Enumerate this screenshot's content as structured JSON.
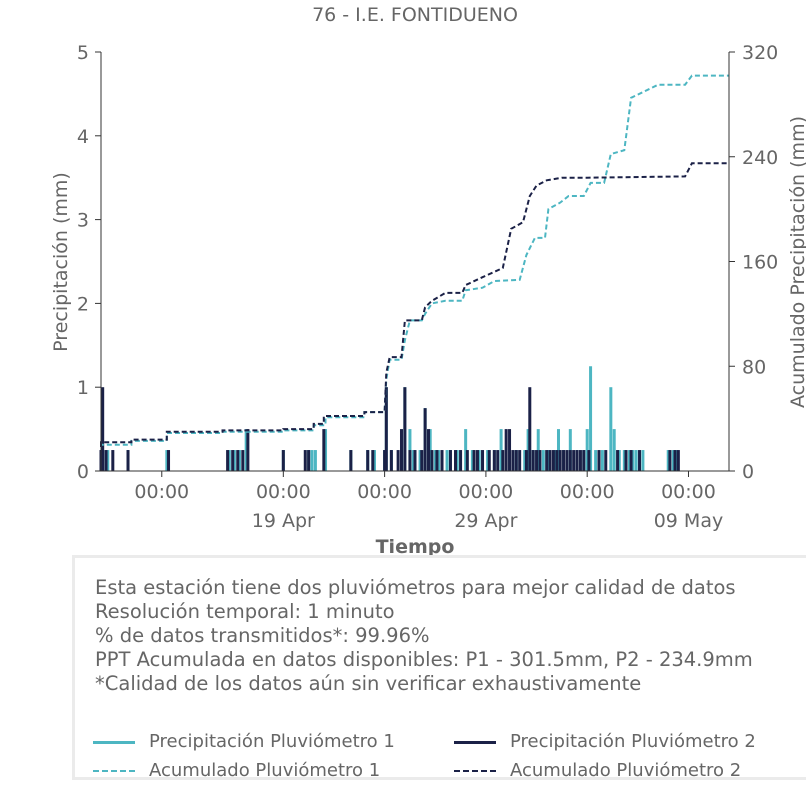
{
  "chart_data": {
    "type": "bar",
    "title": "76 - I.E. FONTIDUENO",
    "xlabel": "Tiempo",
    "ylabel": "Precipitación (mm)",
    "y2label": "Acumulado Precipitación (mm)",
    "ylim": [
      0,
      5
    ],
    "y2lim": [
      0,
      320
    ],
    "yticks": [
      "0",
      "1",
      "2",
      "3",
      "4",
      "5"
    ],
    "y2ticks": [
      "0",
      "80",
      "160",
      "240",
      "320"
    ],
    "xlim": [
      "2024-04-10 00:00",
      "2024-05-11 00:00"
    ],
    "xticks": [
      {
        "x": "2024-04-13 00:00",
        "time": "00:00",
        "date": ""
      },
      {
        "x": "2024-04-19 00:00",
        "time": "00:00",
        "date": "19 Apr"
      },
      {
        "x": "2024-04-24 00:00",
        "time": "00:00",
        "date": ""
      },
      {
        "x": "2024-04-29 00:00",
        "time": "00:00",
        "date": "29 Apr"
      },
      {
        "x": "2024-05-04 00:00",
        "time": "00:00",
        "date": ""
      },
      {
        "x": "2024-05-09 00:00",
        "time": "00:00",
        "date": "09 May"
      }
    ],
    "colors": {
      "p1": "#4db6c2",
      "p2": "#1b2147"
    },
    "series": [
      {
        "name": "Precipitación Pluviómetro 1",
        "type": "bar",
        "axis": "left",
        "color": "#4db6c2",
        "points": [
          [
            "2024-04-10 02:00",
            0.25
          ],
          [
            "2024-04-10 08:00",
            0.25
          ],
          [
            "2024-04-11 08:00",
            0.25
          ],
          [
            "2024-04-13 06:00",
            0.25
          ],
          [
            "2024-04-16 08:00",
            0.25
          ],
          [
            "2024-04-16 14:00",
            0.25
          ],
          [
            "2024-04-16 20:00",
            0.25
          ],
          [
            "2024-04-17 04:00",
            0.5
          ],
          [
            "2024-04-19 00:00",
            0.25
          ],
          [
            "2024-04-20 06:00",
            0.25
          ],
          [
            "2024-04-20 10:00",
            0.25
          ],
          [
            "2024-04-20 14:00",
            0.25
          ],
          [
            "2024-04-21 02:00",
            0.5
          ],
          [
            "2024-04-22 08:00",
            0.25
          ],
          [
            "2024-04-23 04:00",
            0.25
          ],
          [
            "2024-04-23 12:00",
            0.25
          ],
          [
            "2024-04-24 00:00",
            0.25
          ],
          [
            "2024-04-24 02:00",
            1.0
          ],
          [
            "2024-04-24 08:00",
            0.25
          ],
          [
            "2024-04-24 20:00",
            0.25
          ],
          [
            "2024-04-25 00:00",
            1.0
          ],
          [
            "2024-04-25 06:00",
            0.5
          ],
          [
            "2024-04-25 10:00",
            0.25
          ],
          [
            "2024-04-25 18:00",
            0.25
          ],
          [
            "2024-04-26 00:00",
            0.75
          ],
          [
            "2024-04-26 06:00",
            0.5
          ],
          [
            "2024-04-26 12:00",
            0.25
          ],
          [
            "2024-04-26 16:00",
            0.25
          ],
          [
            "2024-04-27 02:00",
            0.25
          ],
          [
            "2024-04-27 06:00",
            0.25
          ],
          [
            "2024-04-27 14:00",
            0.25
          ],
          [
            "2024-04-28 00:00",
            0.5
          ],
          [
            "2024-04-28 08:00",
            0.25
          ],
          [
            "2024-04-28 16:00",
            0.25
          ],
          [
            "2024-04-29 02:00",
            0.25
          ],
          [
            "2024-04-29 10:00",
            0.25
          ],
          [
            "2024-04-29 18:00",
            0.5
          ],
          [
            "2024-04-30 04:00",
            0.25
          ],
          [
            "2024-04-30 12:00",
            0.25
          ],
          [
            "2024-04-30 22:00",
            0.25
          ],
          [
            "2024-05-01 02:00",
            0.5
          ],
          [
            "2024-05-01 08:00",
            0.25
          ],
          [
            "2024-05-01 14:00",
            0.5
          ],
          [
            "2024-05-01 20:00",
            0.25
          ],
          [
            "2024-05-02 02:00",
            0.25
          ],
          [
            "2024-05-02 10:00",
            0.25
          ],
          [
            "2024-05-02 14:00",
            0.5
          ],
          [
            "2024-05-02 20:00",
            0.25
          ],
          [
            "2024-05-03 04:00",
            0.5
          ],
          [
            "2024-05-03 12:00",
            0.25
          ],
          [
            "2024-05-03 20:00",
            0.25
          ],
          [
            "2024-05-04 00:00",
            0.5
          ],
          [
            "2024-05-04 04:00",
            1.25
          ],
          [
            "2024-05-04 10:00",
            0.25
          ],
          [
            "2024-05-04 18:00",
            0.25
          ],
          [
            "2024-05-05 04:00",
            1.0
          ],
          [
            "2024-05-05 08:00",
            0.5
          ],
          [
            "2024-05-05 14:00",
            0.25
          ],
          [
            "2024-05-05 20:00",
            0.25
          ],
          [
            "2024-05-06 02:00",
            0.25
          ],
          [
            "2024-05-06 06:00",
            0.25
          ],
          [
            "2024-05-06 10:00",
            0.25
          ],
          [
            "2024-05-06 18:00",
            0.25
          ],
          [
            "2024-05-08 00:00",
            0.25
          ],
          [
            "2024-05-08 06:00",
            0.25
          ],
          [
            "2024-05-08 10:00",
            0.25
          ]
        ]
      },
      {
        "name": "Precipitación Pluviómetro 2",
        "type": "bar",
        "axis": "left",
        "color": "#1b2147",
        "points": [
          [
            "2024-04-10 00:00",
            0.25
          ],
          [
            "2024-04-10 02:00",
            1.0
          ],
          [
            "2024-04-10 06:00",
            0.25
          ],
          [
            "2024-04-10 14:00",
            0.25
          ],
          [
            "2024-04-11 08:00",
            0.25
          ],
          [
            "2024-04-13 08:00",
            0.25
          ],
          [
            "2024-04-16 06:00",
            0.25
          ],
          [
            "2024-04-16 12:00",
            0.25
          ],
          [
            "2024-04-16 18:00",
            0.25
          ],
          [
            "2024-04-17 00:00",
            0.25
          ],
          [
            "2024-04-17 06:00",
            0.5
          ],
          [
            "2024-04-19 00:00",
            0.25
          ],
          [
            "2024-04-20 02:00",
            0.25
          ],
          [
            "2024-04-20 06:00",
            0.25
          ],
          [
            "2024-04-21 00:00",
            0.5
          ],
          [
            "2024-04-22 08:00",
            0.25
          ],
          [
            "2024-04-23 04:00",
            0.25
          ],
          [
            "2024-04-23 10:00",
            0.25
          ],
          [
            "2024-04-24 00:00",
            0.25
          ],
          [
            "2024-04-24 02:00",
            1.0
          ],
          [
            "2024-04-24 08:00",
            0.25
          ],
          [
            "2024-04-24 16:00",
            0.25
          ],
          [
            "2024-04-24 20:00",
            0.5
          ],
          [
            "2024-04-25 00:00",
            1.0
          ],
          [
            "2024-04-25 06:00",
            0.25
          ],
          [
            "2024-04-25 12:00",
            0.25
          ],
          [
            "2024-04-25 20:00",
            0.25
          ],
          [
            "2024-04-26 00:00",
            0.75
          ],
          [
            "2024-04-26 04:00",
            0.5
          ],
          [
            "2024-04-26 08:00",
            0.25
          ],
          [
            "2024-04-26 14:00",
            0.25
          ],
          [
            "2024-04-26 20:00",
            0.25
          ],
          [
            "2024-04-27 06:00",
            0.25
          ],
          [
            "2024-04-27 12:00",
            0.25
          ],
          [
            "2024-04-27 18:00",
            0.25
          ],
          [
            "2024-04-28 02:00",
            0.25
          ],
          [
            "2024-04-28 10:00",
            0.25
          ],
          [
            "2024-04-28 14:00",
            0.25
          ],
          [
            "2024-04-28 20:00",
            0.25
          ],
          [
            "2024-04-29 04:00",
            0.25
          ],
          [
            "2024-04-29 10:00",
            0.25
          ],
          [
            "2024-04-29 14:00",
            0.25
          ],
          [
            "2024-04-29 20:00",
            0.25
          ],
          [
            "2024-04-30 00:00",
            0.5
          ],
          [
            "2024-04-30 04:00",
            0.5
          ],
          [
            "2024-04-30 08:00",
            0.25
          ],
          [
            "2024-04-30 12:00",
            0.25
          ],
          [
            "2024-04-30 16:00",
            0.25
          ],
          [
            "2024-05-01 00:00",
            0.25
          ],
          [
            "2024-05-01 04:00",
            1.0
          ],
          [
            "2024-05-01 08:00",
            0.25
          ],
          [
            "2024-05-01 12:00",
            0.25
          ],
          [
            "2024-05-01 16:00",
            0.25
          ],
          [
            "2024-05-02 00:00",
            0.25
          ],
          [
            "2024-05-02 04:00",
            0.25
          ],
          [
            "2024-05-02 08:00",
            0.25
          ],
          [
            "2024-05-02 12:00",
            0.25
          ],
          [
            "2024-05-02 16:00",
            0.25
          ],
          [
            "2024-05-02 20:00",
            0.25
          ],
          [
            "2024-05-03 00:00",
            0.25
          ],
          [
            "2024-05-03 04:00",
            0.25
          ],
          [
            "2024-05-03 08:00",
            0.25
          ],
          [
            "2024-05-03 12:00",
            0.25
          ],
          [
            "2024-05-03 16:00",
            0.25
          ],
          [
            "2024-05-03 20:00",
            0.25
          ],
          [
            "2024-05-04 02:00",
            0.25
          ],
          [
            "2024-05-04 14:00",
            0.25
          ],
          [
            "2024-05-04 22:00",
            0.25
          ],
          [
            "2024-05-05 12:00",
            0.25
          ],
          [
            "2024-05-05 22:00",
            0.25
          ],
          [
            "2024-05-06 04:00",
            0.25
          ],
          [
            "2024-05-06 14:00",
            0.25
          ],
          [
            "2024-05-08 02:00",
            0.25
          ],
          [
            "2024-05-08 08:00",
            0.25
          ],
          [
            "2024-05-08 12:00",
            0.25
          ]
        ]
      },
      {
        "name": "Acumulado Pluviómetro 1",
        "type": "step-line",
        "dashed": true,
        "axis": "right",
        "color": "#4db6c2",
        "points": [
          [
            "2024-04-10 00:00",
            0
          ],
          [
            "2024-04-10 00:00",
            20
          ],
          [
            "2024-04-11 12:00",
            20
          ],
          [
            "2024-04-11 12:00",
            23
          ],
          [
            "2024-04-13 06:00",
            23
          ],
          [
            "2024-04-13 06:00",
            29
          ],
          [
            "2024-04-16 00:00",
            29
          ],
          [
            "2024-04-16 00:00",
            30
          ],
          [
            "2024-04-19 00:00",
            30
          ],
          [
            "2024-04-19 00:00",
            31
          ],
          [
            "2024-04-20 12:00",
            31
          ],
          [
            "2024-04-20 12:00",
            35
          ],
          [
            "2024-04-21 02:00",
            35
          ],
          [
            "2024-04-21 02:00",
            41
          ],
          [
            "2024-04-23 00:00",
            41
          ],
          [
            "2024-04-23 00:00",
            45
          ],
          [
            "2024-04-24 00:00",
            45
          ],
          [
            "2024-04-24 02:00",
            70
          ],
          [
            "2024-04-24 06:00",
            85
          ],
          [
            "2024-04-24 20:00",
            85
          ],
          [
            "2024-04-25 00:00",
            100
          ],
          [
            "2024-04-25 06:00",
            115
          ],
          [
            "2024-04-25 20:00",
            115
          ],
          [
            "2024-04-26 00:00",
            120
          ],
          [
            "2024-04-26 08:00",
            128
          ],
          [
            "2024-04-27 00:00",
            130
          ],
          [
            "2024-04-27 20:00",
            130
          ],
          [
            "2024-04-28 00:00",
            138
          ],
          [
            "2024-04-28 20:00",
            140
          ],
          [
            "2024-04-29 10:00",
            145
          ],
          [
            "2024-04-30 16:00",
            146
          ],
          [
            "2024-05-01 00:00",
            165
          ],
          [
            "2024-05-01 10:00",
            178
          ],
          [
            "2024-05-01 22:00",
            178
          ],
          [
            "2024-05-02 02:00",
            200
          ],
          [
            "2024-05-02 16:00",
            205
          ],
          [
            "2024-05-03 02:00",
            210
          ],
          [
            "2024-05-03 20:00",
            210
          ],
          [
            "2024-05-04 04:00",
            220
          ],
          [
            "2024-05-04 20:00",
            220
          ],
          [
            "2024-05-05 04:00",
            242
          ],
          [
            "2024-05-05 20:00",
            245
          ],
          [
            "2024-05-06 04:00",
            285
          ],
          [
            "2024-05-06 20:00",
            290
          ],
          [
            "2024-05-07 12:00",
            295
          ],
          [
            "2024-05-08 20:00",
            295
          ],
          [
            "2024-05-09 04:00",
            302
          ],
          [
            "2024-05-11 00:00",
            302
          ]
        ]
      },
      {
        "name": "Acumulado Pluviómetro 2",
        "type": "step-line",
        "dashed": true,
        "axis": "right",
        "color": "#1b2147",
        "points": [
          [
            "2024-04-10 00:00",
            0
          ],
          [
            "2024-04-10 00:00",
            22
          ],
          [
            "2024-04-11 12:00",
            22
          ],
          [
            "2024-04-11 12:00",
            24
          ],
          [
            "2024-04-13 06:00",
            24
          ],
          [
            "2024-04-13 06:00",
            30
          ],
          [
            "2024-04-16 00:00",
            30
          ],
          [
            "2024-04-16 00:00",
            31
          ],
          [
            "2024-04-19 00:00",
            31
          ],
          [
            "2024-04-19 00:00",
            32
          ],
          [
            "2024-04-20 12:00",
            32
          ],
          [
            "2024-04-20 12:00",
            36
          ],
          [
            "2024-04-21 00:00",
            36
          ],
          [
            "2024-04-21 00:00",
            42
          ],
          [
            "2024-04-23 00:00",
            42
          ],
          [
            "2024-04-23 00:00",
            45
          ],
          [
            "2024-04-24 00:00",
            45
          ],
          [
            "2024-04-24 02:00",
            75
          ],
          [
            "2024-04-24 06:00",
            87
          ],
          [
            "2024-04-24 20:00",
            87
          ],
          [
            "2024-04-25 00:00",
            115
          ],
          [
            "2024-04-25 20:00",
            115
          ],
          [
            "2024-04-26 00:00",
            125
          ],
          [
            "2024-04-26 08:00",
            130
          ],
          [
            "2024-04-27 00:00",
            136
          ],
          [
            "2024-04-27 20:00",
            136
          ],
          [
            "2024-04-28 00:00",
            142
          ],
          [
            "2024-04-28 20:00",
            148
          ],
          [
            "2024-04-29 20:00",
            155
          ],
          [
            "2024-04-30 06:00",
            185
          ],
          [
            "2024-04-30 20:00",
            190
          ],
          [
            "2024-05-01 04:00",
            210
          ],
          [
            "2024-05-01 12:00",
            218
          ],
          [
            "2024-05-02 00:00",
            222
          ],
          [
            "2024-05-02 18:00",
            224
          ],
          [
            "2024-05-04 00:00",
            224
          ],
          [
            "2024-05-08 20:00",
            225
          ],
          [
            "2024-05-09 04:00",
            235
          ],
          [
            "2024-05-11 00:00",
            235
          ]
        ]
      }
    ],
    "legend": {
      "placement": "bottom",
      "items": [
        {
          "label": "Precipitación Pluviómetro 1",
          "color": "#4db6c2",
          "style": "solid"
        },
        {
          "label": "Precipitación Pluviómetro 2",
          "color": "#1b2147",
          "style": "solid"
        },
        {
          "label": "Acumulado Pluviómetro 1",
          "color": "#4db6c2",
          "style": "dashed"
        },
        {
          "label": "Acumulado Pluviómetro 2",
          "color": "#1b2147",
          "style": "dashed"
        }
      ]
    }
  },
  "info": {
    "line1": "Esta estación tiene dos pluviómetros para mejor calidad de datos",
    "line2": "Resolución temporal: 1 minuto",
    "line3": "% de datos transmitidos*: 99.96%",
    "line4": "PPT Acumulada en datos disponibles: P1 - 301.5mm, P2 - 234.9mm",
    "line5": "*Calidad de los datos aún sin verificar exhaustivamente"
  }
}
